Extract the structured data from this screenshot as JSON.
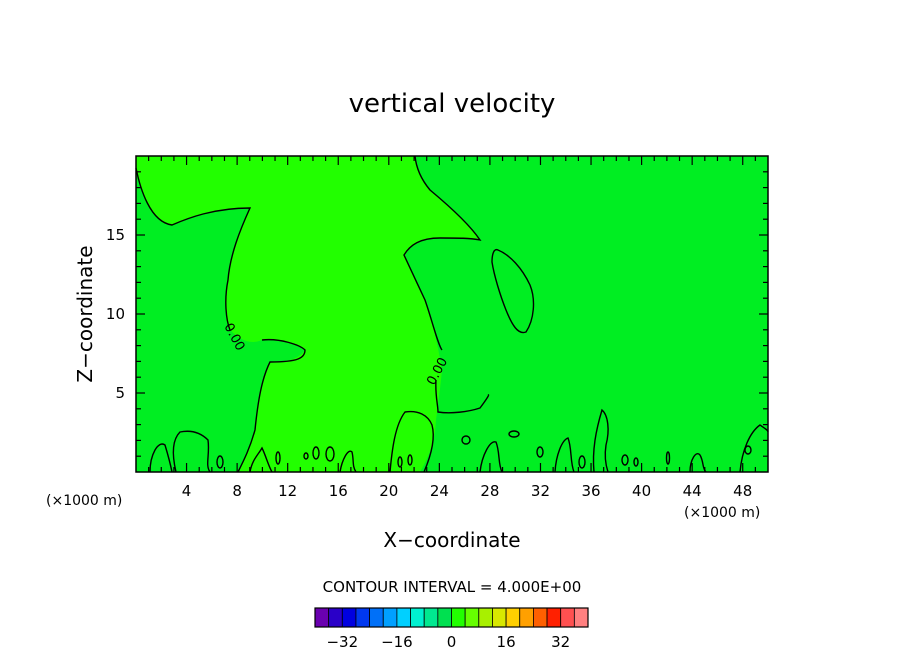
{
  "chart_data": {
    "type": "contour",
    "title": "vertical velocity",
    "xlabel": "X−coordinate",
    "ylabel": "Z−coordinate",
    "x_unit": "(×1000 m)",
    "xlim": [
      0,
      50
    ],
    "ylim": [
      0,
      20
    ],
    "x_ticks": [
      4,
      8,
      12,
      16,
      20,
      24,
      28,
      32,
      36,
      40,
      44,
      48
    ],
    "y_ticks": [
      5,
      10,
      15
    ],
    "contour_interval_label": "CONTOUR INTERVAL = 4.000E+00",
    "contour_labels": [
      "0.00",
      "0.00"
    ],
    "colorbar": {
      "ticks": [
        "−32",
        "−16",
        "0",
        "16",
        "32"
      ],
      "tick_values": [
        -32,
        -16,
        0,
        16,
        32
      ],
      "levels": [
        -40,
        -36,
        -32,
        -28,
        -24,
        -20,
        -16,
        -12,
        -8,
        -4,
        0,
        4,
        8,
        12,
        16,
        20,
        24,
        28,
        32,
        36,
        40
      ],
      "colors": [
        "#6a00b0",
        "#2a00c8",
        "#0000e0",
        "#0038f0",
        "#0070f8",
        "#00a0ff",
        "#00d0ff",
        "#00f0d0",
        "#00e890",
        "#00e050",
        "#22ff00",
        "#66ff00",
        "#a8f000",
        "#d8e800",
        "#ffd000",
        "#ffa000",
        "#ff6000",
        "#ff2000",
        "#ff5050",
        "#ff8080"
      ]
    },
    "fill_colors": {
      "background": "#00ee22",
      "positive_region": "#22ff00"
    }
  }
}
